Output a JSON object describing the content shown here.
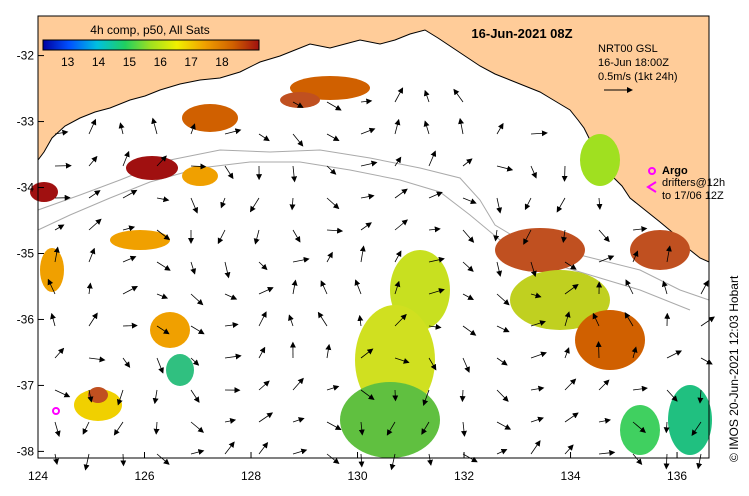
{
  "header": {
    "colorbar_title": "4h comp, p50, All Sats",
    "timestamp": "16-Jun-2021 08Z"
  },
  "colorbar": {
    "ticks": [
      "13",
      "14",
      "15",
      "16",
      "17",
      "18"
    ],
    "stops": [
      "#0000a0",
      "#0050ff",
      "#00c0e0",
      "#20d060",
      "#a0e020",
      "#f0f000",
      "#f0a000",
      "#d06000",
      "#a01010"
    ]
  },
  "current_info": {
    "line1": "NRT00 GSL",
    "line2": "16-Jun 18:00Z",
    "line3": "0.5m/s (1kt 24h)"
  },
  "legend": {
    "argo_label": "Argo",
    "drifters_line1": "drifters@12h",
    "drifters_line2": "to 17/06 12Z",
    "argo_color": "#ff00ff",
    "drifter_color": "#ff00ff"
  },
  "credit": "© IMOS 20-Jun-2021 12:03 Hobart",
  "axes": {
    "x_ticks": [
      "124",
      "126",
      "128",
      "130",
      "132",
      "134",
      "136"
    ],
    "y_ticks": [
      "-32",
      "-33",
      "-34",
      "-35",
      "-36",
      "-37",
      "-38"
    ],
    "lon_range": [
      124,
      136.6
    ],
    "lat_range": [
      -38.1,
      -31.4
    ]
  },
  "colors": {
    "land": "#ffcc99",
    "ocean": "#ffffff",
    "coast": "#000000",
    "isobath": "#aaaaaa"
  }
}
